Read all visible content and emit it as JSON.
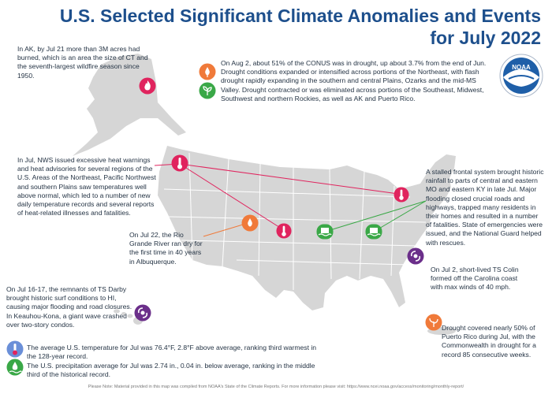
{
  "title": {
    "line1": "U.S. Selected Significant Climate Anomalies and Events",
    "line2": "for July 2022"
  },
  "logo": {
    "text": "NOAA"
  },
  "annotations": {
    "alaska": "In AK, by Jul 21 more than 3M acres had burned, which is an area the size of CT and the seventh-largest wildfire season since 1950.",
    "drought": "On Aug 2, about 51% of the CONUS was in drought, up about 3.7% from the end of Jun. Drought conditions expanded or intensified across portions of the Northeast, with flash drought rapidly expanding in the southern and central Plains, Ozarks and the mid-MS Valley. Drought contracted or was eliminated across portions of the Southeast, Midwest, Southwest and northern Rockies, as well as AK and Puerto Rico.",
    "heat": "In Jul, NWS issued excessive heat warnings and heat advisories for several regions of the U.S. Areas of the Northeast, Pacific Northwest and southern Plains saw temperatures well above normal, which led to a number of new daily temperature records and several reports of heat-related illnesses and fatalities.",
    "flood": "A stalled frontal system brought historic rainfall to parts of central and eastern MO and eastern KY in late Jul. Major flooding closed crucial roads and highways, trapped many residents in their homes and resulted in a number of fatalities. State of emergencies were issued, and the National Guard helped with rescues.",
    "rio_grande": "On Jul 22, the Rio Grande River ran dry for the first time in 40 years in Albuquerque.",
    "colin": "On Jul 2, short-lived TS Colin formed off the Carolina coast with max winds of 40 mph.",
    "darby": "On Jul 16-17, the remnants of TS Darby brought historic surf conditions to HI, causing major flooding and road closures. In Keauhou-Kona, a giant wave crashed over two-story condos.",
    "puerto_rico": "Drought covered nearly 50% of Puerto Rico during Jul, with the Commonwealth in drought for a record 85 consecutive weeks.",
    "temperature": "The average U.S. temperature for Jul was 76.4°F, 2.8°F above average, ranking third warmest in the 128-year record.",
    "precipitation": "The U.S. precipitation average for Jul was 2.74 in., 0.04 in. below average, ranking in the middle third of the historical record."
  },
  "footer": "Please Note: Material provided in this map was compiled from NOAA's State of the Climate Reports. For more information please visit: https://www.ncei.noaa.gov/access/monitoring/monthly-report/",
  "colors": {
    "title_blue": "#1d4f8c",
    "land": "#d6d6d6",
    "state_borders": "#ffffff",
    "heat_red": "#e0245e",
    "drought_orange": "#f07a3a",
    "flood_green": "#3aa847",
    "storm_purple": "#6b2f8a",
    "temp_icon": "#6a8fd8"
  },
  "icons": [
    "fire-icon",
    "thermometer-icon",
    "drought-icon",
    "plant-icon",
    "flood-icon",
    "hurricane-icon"
  ]
}
